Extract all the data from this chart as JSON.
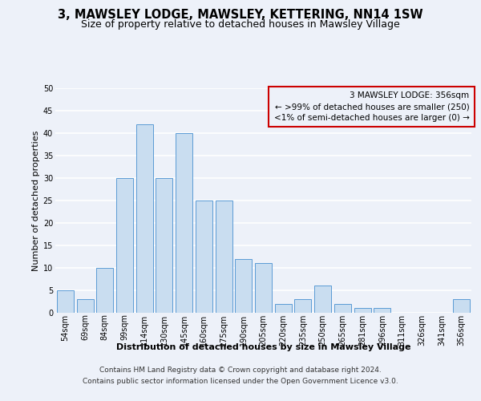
{
  "title": "3, MAWSLEY LODGE, MAWSLEY, KETTERING, NN14 1SW",
  "subtitle": "Size of property relative to detached houses in Mawsley Village",
  "xlabel": "Distribution of detached houses by size in Mawsley Village",
  "ylabel": "Number of detached properties",
  "categories": [
    "54sqm",
    "69sqm",
    "84sqm",
    "99sqm",
    "114sqm",
    "130sqm",
    "145sqm",
    "160sqm",
    "175sqm",
    "190sqm",
    "205sqm",
    "220sqm",
    "235sqm",
    "250sqm",
    "265sqm",
    "281sqm",
    "296sqm",
    "311sqm",
    "326sqm",
    "341sqm",
    "356sqm"
  ],
  "values": [
    5,
    3,
    10,
    30,
    42,
    30,
    40,
    25,
    25,
    12,
    11,
    2,
    3,
    6,
    2,
    1,
    1,
    0,
    0,
    0,
    3
  ],
  "bar_color": "#c9ddf0",
  "bar_edge_color": "#5b9bd5",
  "annotation_line1": "3 MAWSLEY LODGE: 356sqm",
  "annotation_line2": "← >99% of detached houses are smaller (250)",
  "annotation_line3": "<1% of semi-detached houses are larger (0) →",
  "ylim": [
    0,
    50
  ],
  "yticks": [
    0,
    5,
    10,
    15,
    20,
    25,
    30,
    35,
    40,
    45,
    50
  ],
  "footer_line1": "Contains HM Land Registry data © Crown copyright and database right 2024.",
  "footer_line2": "Contains public sector information licensed under the Open Government Licence v3.0.",
  "background_color": "#edf1f9",
  "grid_color": "#ffffff",
  "red_box_color": "#cc0000",
  "title_fontsize": 10.5,
  "subtitle_fontsize": 9,
  "axis_label_fontsize": 8,
  "tick_fontsize": 7,
  "annotation_fontsize": 7.5,
  "footer_fontsize": 6.5
}
